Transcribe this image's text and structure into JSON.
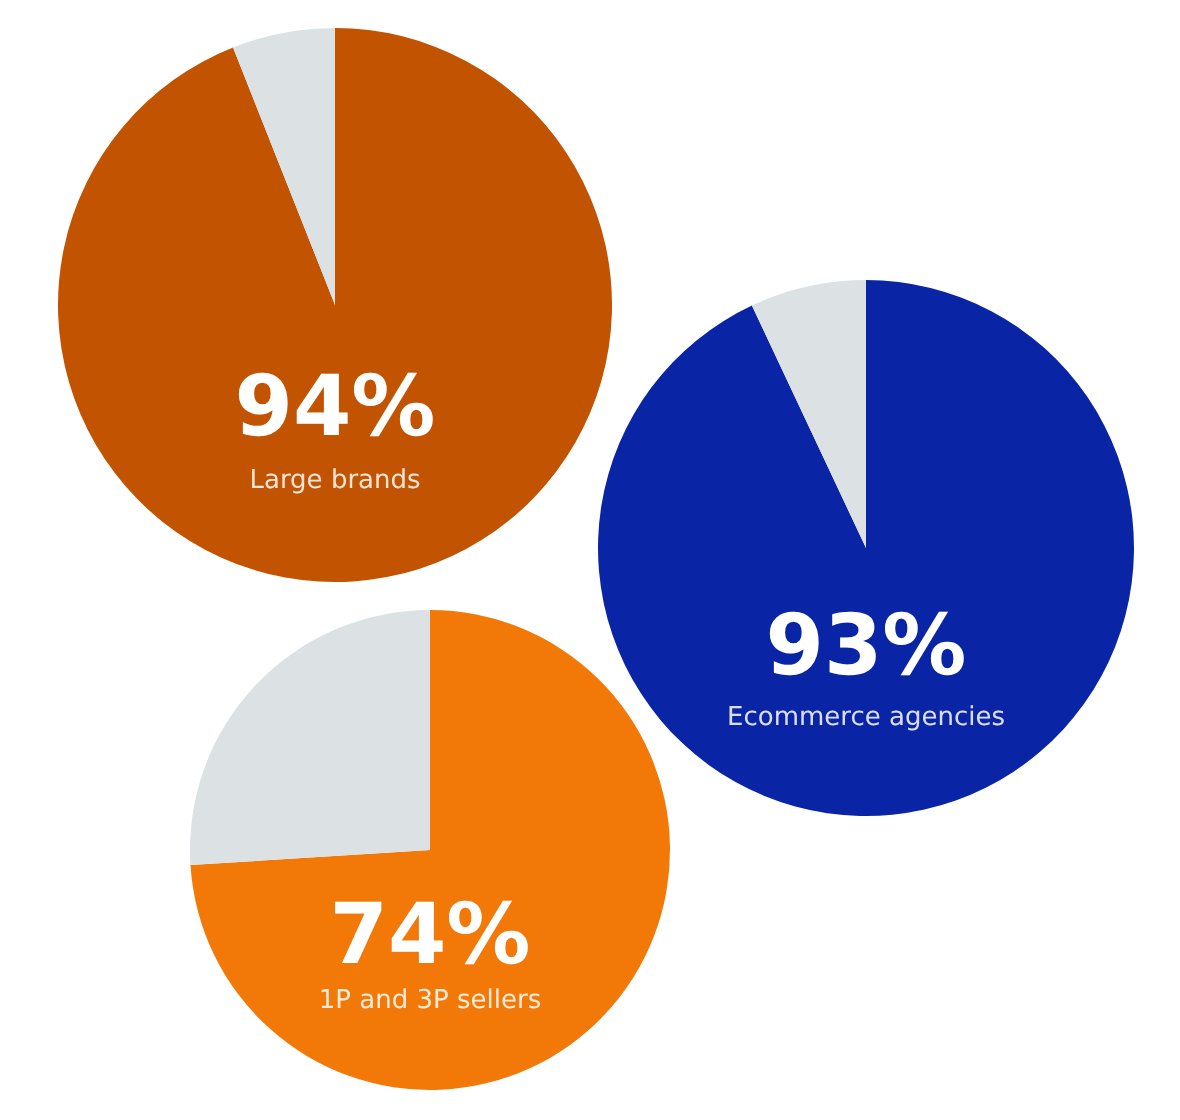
{
  "chart_data": [
    {
      "type": "pie",
      "title": "Large brands",
      "categories": [
        null,
        null
      ],
      "values": [
        94,
        6
      ],
      "colors": [
        "#c25300",
        "#dce1e4"
      ],
      "value_labels": [
        "94%",
        null
      ]
    },
    {
      "type": "pie",
      "title": "Ecommerce agencies",
      "categories": [
        null,
        null
      ],
      "values": [
        93,
        7
      ],
      "colors": [
        "#0a24a6",
        "#dce1e4"
      ],
      "value_labels": [
        "93%",
        null
      ]
    },
    {
      "type": "pie",
      "title": "1P and 3P sellers",
      "categories": [
        null,
        null
      ],
      "values": [
        74,
        26
      ],
      "colors": [
        "#f27908",
        "#dce1e4"
      ],
      "value_labels": [
        "74%",
        null
      ]
    }
  ]
}
